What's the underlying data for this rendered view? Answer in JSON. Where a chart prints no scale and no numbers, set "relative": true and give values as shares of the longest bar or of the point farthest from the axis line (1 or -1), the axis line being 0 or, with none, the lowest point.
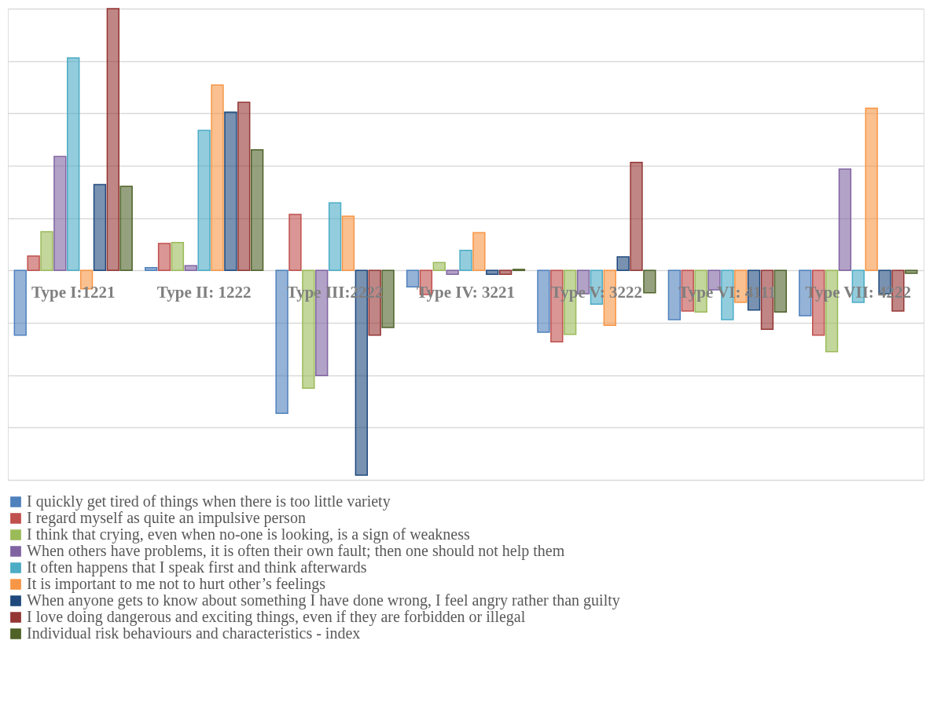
{
  "chart_data": {
    "type": "bar",
    "relative": true,
    "grid": "y",
    "legend": "bottom",
    "categories": [
      "Type I:1221",
      "Type II: 1222",
      "Type III:2222",
      "Type IV: 3221",
      "Type V: 3222",
      "Type VI: 4111",
      "Type VII: 4222"
    ],
    "series": [
      {
        "name": "I quickly get tired of things when there is too little variety",
        "color": "#4f81bd",
        "values": [
          -0.247,
          0.011,
          -0.546,
          -0.063,
          -0.236,
          -0.188,
          -0.173
        ]
      },
      {
        "name": "I regard myself as quite an impulsive person",
        "color": "#c0504d",
        "values": [
          0.055,
          0.103,
          0.214,
          -0.092,
          -0.273,
          -0.155,
          -0.247
        ]
      },
      {
        "name": "I think that crying, even when no-one is looking, is a sign of weakness",
        "color": "#9bbb59",
        "values": [
          0.148,
          0.107,
          -0.45,
          0.03,
          -0.244,
          -0.159,
          -0.31
        ]
      },
      {
        "name": "When others have problems, it is often their own fault; then one should not help them",
        "color": "#8064a2",
        "values": [
          0.435,
          0.018,
          -0.402,
          -0.015,
          -0.089,
          -0.074,
          0.387
        ]
      },
      {
        "name": "It often happens that I speak first and think afterwards",
        "color": "#4bacc6",
        "values": [
          0.812,
          0.535,
          0.258,
          0.077,
          -0.129,
          -0.188,
          -0.122
        ]
      },
      {
        "name": "It is important to me not to hurt other’s feelings",
        "color": "#f79646",
        "values": [
          -0.07,
          0.708,
          0.207,
          0.144,
          -0.21,
          -0.122,
          0.62
        ]
      },
      {
        "name": "When anyone gets to know about something I have done wrong, I feel angry rather than guilty",
        "color": "#1f497d",
        "values": [
          0.328,
          0.605,
          -0.782,
          -0.015,
          0.052,
          -0.151,
          -0.089
        ]
      },
      {
        "name": "I love doing dangerous and exciting things, even if they are forbidden or illegal",
        "color": "#943634",
        "values": [
          1,
          0.642,
          -0.247,
          -0.015,
          0.413,
          -0.225,
          -0.155
        ]
      },
      {
        "name": "Individual risk behaviours and characteristics - index",
        "color": "#4f6228",
        "values": [
          0.321,
          0.461,
          -0.218,
          0.004,
          -0.085,
          -0.159,
          -0.011
        ]
      }
    ]
  }
}
